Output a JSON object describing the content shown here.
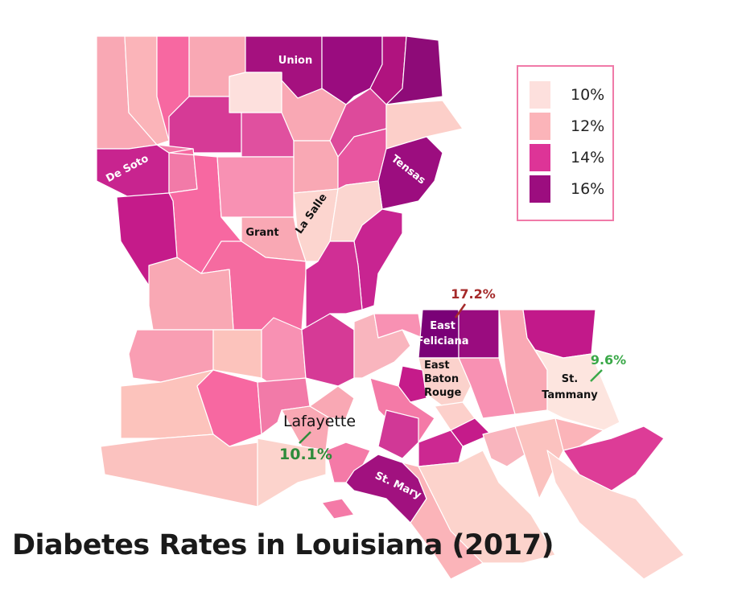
{
  "title": "Diabetes Rates in Louisiana (2017)",
  "legend": {
    "items": [
      {
        "label": "10%",
        "color": "#fde0dd"
      },
      {
        "label": "12%",
        "color": "#fbb4b9"
      },
      {
        "label": "14%",
        "color": "#dd3497"
      },
      {
        "label": "16%",
        "color": "#9c0d7f"
      }
    ],
    "border_color": "#f07aa8"
  },
  "labels": {
    "union": "Union",
    "de_soto": "De Soto",
    "tensas": "Tensas",
    "grant": "Grant",
    "la_salle": "La Salle",
    "east_feliciana_1": "East",
    "east_feliciana_2": "Feliciana",
    "ebr_1": "East",
    "ebr_2": "Baton",
    "ebr_3": "Rouge",
    "st_tammany_1": "St.",
    "st_tammany_2": "Tammany",
    "lafayette": "Lafayette",
    "st_mary": "St. Mary"
  },
  "callouts": {
    "max": {
      "parish": "East Feliciana",
      "value": "17.2%",
      "color": "#a52a2a"
    },
    "min": {
      "parish": "St. Tammany",
      "value": "9.6%",
      "color": "#3aa848"
    },
    "lafayette": {
      "parish": "Lafayette",
      "value": "10.1%",
      "color": "#2e8b3a"
    }
  }
}
